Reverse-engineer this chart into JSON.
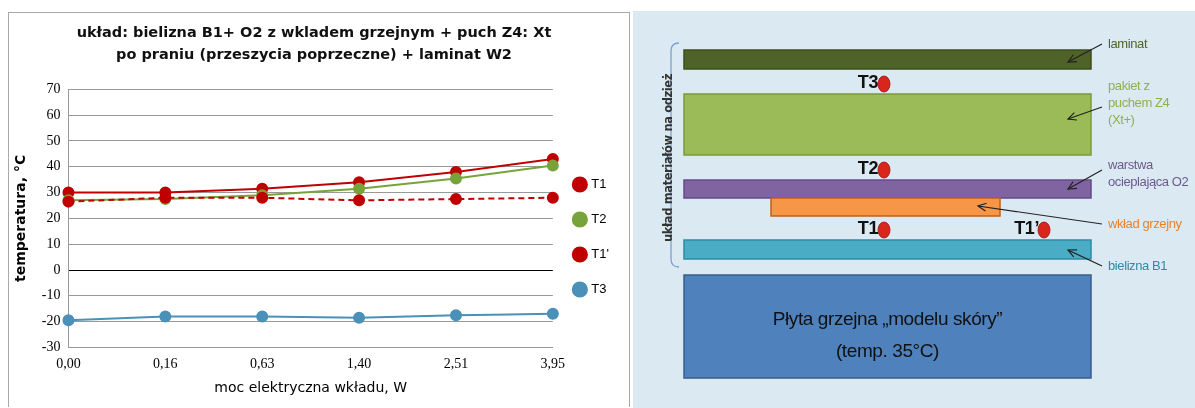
{
  "chart_data": [
    {
      "type": "line",
      "title": "układ: bielizna B1+ O2 z wkladem grzejnym + puch Z4: Xt po praniu (przeszycia poprzeczne) + laminat W2",
      "xlabel": "moc elektryczna wkładu, W",
      "ylabel": "temperatura, °C",
      "categories": [
        "0,00",
        "0,16",
        "0,63",
        "1,40",
        "2,51",
        "3,95"
      ],
      "series": [
        {
          "name": "T1",
          "color": "#c00000",
          "values": [
            30,
            30,
            31.5,
            34,
            38,
            43
          ]
        },
        {
          "name": "T2",
          "color": "#77a33a",
          "values": [
            27,
            27.5,
            29,
            31.5,
            35.5,
            40.5
          ]
        },
        {
          "name": "T1'",
          "color": "#c00000",
          "line_style": "dashed",
          "values": [
            26.5,
            28,
            28,
            27,
            27.5,
            28
          ]
        },
        {
          "name": "T3",
          "color": "#4a90b8",
          "values": [
            -19.5,
            -18,
            -18,
            -18.5,
            -17.5,
            -17
          ]
        }
      ],
      "ylim": [
        -30,
        70
      ],
      "yticks": [
        -30,
        -20,
        -10,
        0,
        10,
        20,
        30,
        40,
        50,
        60,
        70
      ],
      "grid": "y",
      "legend": "right",
      "marker": "circle",
      "line_style": "solid"
    },
    {
      "type": "other",
      "annotations": [
        "układ materiałów na odzież",
        "laminat",
        "pakiet z puchem Z4 (Xt+)",
        "warstwa ocieplająca O2",
        "wkład grzejny",
        "bielizna B1",
        "Płyta grzejna „modelu skóry”",
        "(temp. 35°C)",
        "T3",
        "T2",
        "T1",
        "T1’"
      ]
    }
  ]
}
